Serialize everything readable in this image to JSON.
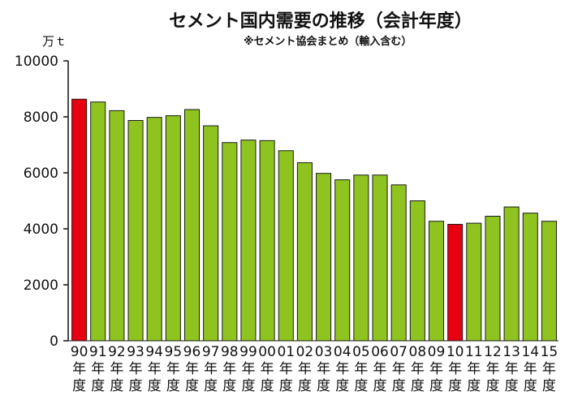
{
  "chart_data": {
    "type": "bar",
    "title": "セメント国内需要の推移（会計年度）",
    "subtitle": "※セメント協会まとめ（輸入含む）",
    "ylabel": "万ｔ",
    "ylim": [
      0,
      10000
    ],
    "yticks": [
      0,
      2000,
      4000,
      6000,
      8000,
      10000
    ],
    "year_suffix": [
      "年",
      "度"
    ],
    "categories": [
      "90",
      "91",
      "92",
      "93",
      "94",
      "95",
      "96",
      "97",
      "98",
      "99",
      "00",
      "01",
      "02",
      "03",
      "04",
      "05",
      "06",
      "07",
      "08",
      "09",
      "10",
      "11",
      "12",
      "13",
      "14",
      "15"
    ],
    "values": [
      8630,
      8530,
      8220,
      7870,
      7980,
      8040,
      8260,
      7680,
      7080,
      7170,
      7150,
      6790,
      6360,
      5980,
      5750,
      5920,
      5920,
      5570,
      5000,
      4270,
      4160,
      4200,
      4450,
      4780,
      4560,
      4270
    ],
    "highlight": [
      "90",
      "10"
    ],
    "colors": {
      "normal": "#8fc31f",
      "highlight": "#e60012",
      "edge": "#1a1a1a"
    },
    "grid": false
  }
}
